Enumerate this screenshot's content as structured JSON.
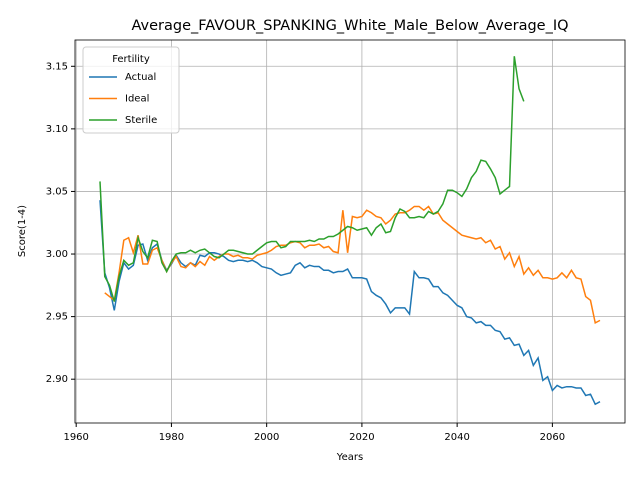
{
  "chart_data": {
    "type": "line",
    "title": "Average_FAVOUR_SPANKING_White_Male_Below_Average_IQ",
    "x_label": "Years",
    "y_label": "Score(1-4)",
    "legend_title": "Fertility",
    "legend_position": "upper left",
    "grid": true,
    "x": [
      1965,
      1966,
      1967,
      1968,
      1969,
      1970,
      1971,
      1972,
      1973,
      1974,
      1975,
      1976,
      1977,
      1978,
      1979,
      1980,
      1981,
      1982,
      1983,
      1984,
      1985,
      1986,
      1987,
      1988,
      1989,
      1990,
      1991,
      1992,
      1993,
      1994,
      1995,
      1996,
      1997,
      1998,
      1999,
      2000,
      2001,
      2002,
      2003,
      2004,
      2005,
      2006,
      2007,
      2008,
      2009,
      2010,
      2011,
      2012,
      2013,
      2014,
      2015,
      2016,
      2017,
      2018,
      2019,
      2020,
      2021,
      2022,
      2023,
      2024,
      2025,
      2026,
      2027,
      2028,
      2029,
      2030,
      2031,
      2032,
      2033,
      2034,
      2035,
      2036,
      2037,
      2038,
      2039,
      2040,
      2041,
      2042,
      2043,
      2044,
      2045,
      2046,
      2047,
      2048,
      2049,
      2050,
      2051,
      2052,
      2053,
      2054,
      2055,
      2056,
      2057,
      2058,
      2059,
      2060,
      2061,
      2062,
      2063,
      2064,
      2065,
      2066,
      2067,
      2068,
      2069,
      2070
    ],
    "series": [
      {
        "name": "Actual",
        "color": "#1f77b4",
        "values": [
          3.043,
          2.985,
          2.973,
          2.955,
          2.978,
          2.993,
          2.988,
          2.991,
          3.007,
          3.008,
          2.995,
          3.005,
          3.008,
          2.995,
          2.987,
          2.992,
          2.999,
          2.993,
          2.99,
          2.993,
          2.991,
          2.999,
          2.998,
          3.001,
          3.001,
          3.0,
          2.998,
          2.995,
          2.994,
          2.995,
          2.995,
          2.994,
          2.995,
          2.993,
          2.99,
          2.989,
          2.988,
          2.985,
          2.983,
          2.984,
          2.985,
          2.991,
          2.993,
          2.989,
          2.991,
          2.99,
          2.99,
          2.987,
          2.987,
          2.985,
          2.986,
          2.986,
          2.988,
          2.981,
          2.981,
          2.981,
          2.98,
          2.97,
          2.967,
          2.965,
          2.96,
          2.953,
          2.957,
          2.957,
          2.957,
          2.952,
          2.986,
          2.981,
          2.981,
          2.98,
          2.974,
          2.974,
          2.969,
          2.967,
          2.963,
          2.959,
          2.957,
          2.95,
          2.949,
          2.945,
          2.946,
          2.943,
          2.943,
          2.939,
          2.938,
          2.932,
          2.933,
          2.927,
          2.928,
          2.919,
          2.923,
          2.911,
          2.917,
          2.899,
          2.902,
          2.891,
          2.895,
          2.893,
          2.894,
          2.894,
          2.893,
          2.893,
          2.887,
          2.888,
          2.88,
          2.882
        ]
      },
      {
        "name": "Ideal",
        "color": "#ff7f0e",
        "values": [
          null,
          2.969,
          2.966,
          2.963,
          2.985,
          3.011,
          3.013,
          3.001,
          3.015,
          2.992,
          2.992,
          3.003,
          3.005,
          2.995,
          2.986,
          2.993,
          2.998,
          2.99,
          2.989,
          2.993,
          2.99,
          2.994,
          2.991,
          2.998,
          2.995,
          2.998,
          3.0,
          3.0,
          2.998,
          2.999,
          2.997,
          2.997,
          2.996,
          2.999,
          3.0,
          3.001,
          3.003,
          3.006,
          3.007,
          3.007,
          3.009,
          3.01,
          3.009,
          3.005,
          3.007,
          3.007,
          3.008,
          3.005,
          3.006,
          3.002,
          3.001,
          3.035,
          3.001,
          3.03,
          3.029,
          3.03,
          3.035,
          3.033,
          3.03,
          3.029,
          3.024,
          3.027,
          3.032,
          3.033,
          3.033,
          3.035,
          3.038,
          3.038,
          3.035,
          3.038,
          3.032,
          3.033,
          3.027,
          3.024,
          3.021,
          3.018,
          3.015,
          3.014,
          3.013,
          3.012,
          3.013,
          3.009,
          3.011,
          3.004,
          3.006,
          2.996,
          3.001,
          2.99,
          2.998,
          2.984,
          2.989,
          2.983,
          2.987,
          2.981,
          2.981,
          2.98,
          2.981,
          2.985,
          2.981,
          2.987,
          2.981,
          2.98,
          2.966,
          2.963,
          2.945,
          2.947
        ]
      },
      {
        "name": "Sterile",
        "color": "#2ca02c",
        "values": [
          3.058,
          2.982,
          2.975,
          2.962,
          2.982,
          2.995,
          2.991,
          2.993,
          3.013,
          3.002,
          2.997,
          3.011,
          3.01,
          2.993,
          2.986,
          2.994,
          3.0,
          3.001,
          3.001,
          3.003,
          3.001,
          3.003,
          3.004,
          3.001,
          2.998,
          2.997,
          3.0,
          3.003,
          3.003,
          3.002,
          3.001,
          3.0,
          3.0,
          3.003,
          3.006,
          3.009,
          3.01,
          3.01,
          3.005,
          3.006,
          3.01,
          3.01,
          3.01,
          3.01,
          3.011,
          3.01,
          3.012,
          3.012,
          3.014,
          3.014,
          3.016,
          3.019,
          3.022,
          3.021,
          3.019,
          3.02,
          3.021,
          3.015,
          3.021,
          3.024,
          3.017,
          3.018,
          3.029,
          3.036,
          3.034,
          3.029,
          3.029,
          3.03,
          3.029,
          3.034,
          3.032,
          3.034,
          3.04,
          3.051,
          3.051,
          3.049,
          3.046,
          3.052,
          3.061,
          3.066,
          3.075,
          3.074,
          3.068,
          3.061,
          3.048,
          3.051,
          3.054,
          3.158,
          3.132,
          3.122,
          null,
          null,
          null,
          null,
          null,
          null,
          null,
          null,
          null,
          null,
          null,
          null,
          null,
          null,
          null,
          null
        ]
      }
    ],
    "xlim": [
      1959.75,
      2075.25
    ],
    "ylim": [
      2.865,
      3.171
    ],
    "xticks": [
      1960,
      1980,
      2000,
      2020,
      2040,
      2060
    ],
    "yticks": [
      {
        "value": 2.9,
        "label": "2.90"
      },
      2.95,
      {
        "value": 3.0,
        "label": "3.00"
      },
      3.05,
      {
        "value": 3.1,
        "label": "3.10"
      },
      3.15
    ]
  }
}
